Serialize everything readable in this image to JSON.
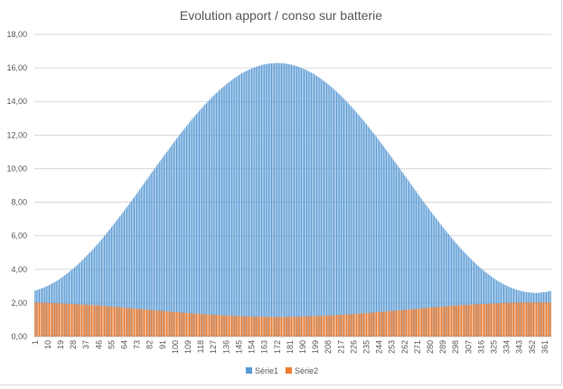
{
  "chart_data": {
    "type": "bar",
    "title": "Evolution apport / conso sur batterie",
    "xlabel": "",
    "ylabel": "",
    "ylim": [
      0,
      18
    ],
    "y_ticks": [
      0,
      2,
      4,
      6,
      8,
      10,
      12,
      14,
      16,
      18
    ],
    "y_tick_labels": [
      "0,00",
      "2,00",
      "4,00",
      "6,00",
      "8,00",
      "10,00",
      "12,00",
      "14,00",
      "16,00",
      "18,00"
    ],
    "x_range": [
      1,
      365
    ],
    "x_tick_labels": [
      "1",
      "10",
      "19",
      "28",
      "37",
      "46",
      "55",
      "64",
      "73",
      "82",
      "91",
      "100",
      "109",
      "118",
      "127",
      "136",
      "145",
      "154",
      "163",
      "172",
      "181",
      "190",
      "199",
      "208",
      "217",
      "226",
      "235",
      "244",
      "253",
      "262",
      "271",
      "280",
      "289",
      "298",
      "307",
      "316",
      "325",
      "334",
      "343",
      "352",
      "361"
    ],
    "grid": "horizontal",
    "legend_position": "bottom",
    "overlap": true,
    "colors": {
      "Série1": "#5B9BD5",
      "Série2": "#ED7D31",
      "grid": "#D9D9D9",
      "text": "#595959"
    },
    "series": [
      {
        "name": "Série1",
        "values": [
          2.74,
          2.76,
          2.79,
          2.82,
          2.85,
          2.88,
          2.91,
          2.95,
          2.99,
          3.03,
          3.07,
          3.11,
          3.16,
          3.21,
          3.25,
          3.3,
          3.35,
          3.41,
          3.47,
          3.53,
          3.59,
          3.65,
          3.72,
          3.78,
          3.85,
          3.91,
          3.98,
          4.05,
          4.13,
          4.2,
          4.28,
          4.35,
          4.43,
          4.52,
          4.6,
          4.69,
          4.77,
          4.86,
          4.95,
          5.03,
          5.12,
          5.21,
          5.31,
          5.4,
          5.5,
          5.59,
          5.69,
          5.79,
          5.89,
          6.0,
          6.1,
          6.2,
          6.31,
          6.41,
          6.52,
          6.62,
          6.73,
          6.84,
          6.95,
          7.06,
          7.17,
          7.28,
          7.39,
          7.5,
          7.62,
          7.73,
          7.84,
          7.96,
          8.07,
          8.19,
          8.3,
          8.42,
          8.54,
          8.66,
          8.77,
          8.89,
          9.01,
          9.13,
          9.25,
          9.36,
          9.48,
          9.6,
          9.72,
          9.83,
          9.95,
          10.06,
          10.18,
          10.3,
          10.42,
          10.53,
          10.65,
          10.77,
          10.88,
          11.0,
          11.11,
          11.23,
          11.34,
          11.45,
          11.56,
          11.68,
          11.79,
          11.9,
          12.01,
          12.12,
          12.22,
          12.33,
          12.44,
          12.54,
          12.65,
          12.75,
          12.86,
          12.96,
          13.06,
          13.16,
          13.25,
          13.35,
          13.45,
          13.54,
          13.63,
          13.73,
          13.82,
          13.91,
          14.0,
          14.09,
          14.17,
          14.26,
          14.35,
          14.43,
          14.51,
          14.58,
          14.66,
          14.74,
          14.81,
          14.88,
          14.95,
          15.02,
          15.09,
          15.15,
          15.22,
          15.28,
          15.35,
          15.41,
          15.46,
          15.52,
          15.57,
          15.63,
          15.68,
          15.72,
          15.77,
          15.81,
          15.86,
          15.9,
          15.93,
          15.97,
          16.0,
          16.04,
          16.07,
          16.1,
          16.12,
          16.15,
          16.17,
          16.2,
          16.21,
          16.23,
          16.24,
          16.26,
          16.27,
          16.28,
          16.28,
          16.29,
          16.29,
          16.3,
          16.29,
          16.29,
          16.28,
          16.28,
          16.27,
          16.26,
          16.24,
          16.23,
          16.21,
          16.2,
          16.17,
          16.15,
          16.12,
          16.1,
          16.07,
          16.04,
          16.0,
          15.97,
          15.93,
          15.9,
          15.86,
          15.81,
          15.77,
          15.72,
          15.68,
          15.63,
          15.57,
          15.52,
          15.46,
          15.41,
          15.35,
          15.28,
          15.22,
          15.15,
          15.09,
          15.02,
          14.95,
          14.88,
          14.81,
          14.74,
          14.66,
          14.58,
          14.51,
          14.43,
          14.35,
          14.26,
          14.17,
          14.09,
          14.0,
          13.91,
          13.82,
          13.73,
          13.63,
          13.54,
          13.45,
          13.35,
          13.25,
          13.16,
          13.06,
          12.96,
          12.86,
          12.75,
          12.65,
          12.54,
          12.44,
          12.33,
          12.22,
          12.12,
          12.01,
          11.9,
          11.79,
          11.68,
          11.56,
          11.45,
          11.34,
          11.23,
          11.11,
          11.0,
          10.88,
          10.77,
          10.65,
          10.53,
          10.42,
          10.3,
          10.18,
          10.06,
          9.95,
          9.83,
          9.72,
          9.6,
          9.48,
          9.36,
          9.25,
          9.13,
          9.01,
          8.89,
          8.77,
          8.66,
          8.54,
          8.42,
          8.3,
          8.19,
          8.07,
          7.96,
          7.84,
          7.73,
          7.62,
          7.5,
          7.39,
          7.28,
          7.17,
          7.06,
          6.95,
          6.84,
          6.73,
          6.62,
          6.52,
          6.41,
          6.31,
          6.2,
          6.1,
          6.0,
          5.89,
          5.79,
          5.69,
          5.59,
          5.5,
          5.4,
          5.31,
          5.21,
          5.12,
          5.03,
          4.95,
          4.86,
          4.77,
          4.69,
          4.6,
          4.52,
          4.43,
          4.35,
          4.28,
          4.2,
          4.13,
          4.05,
          3.98,
          3.91,
          3.85,
          3.78,
          3.72,
          3.65,
          3.59,
          3.53,
          3.47,
          3.41,
          3.35,
          3.3,
          3.25,
          3.21,
          3.16,
          3.11,
          3.07,
          3.03,
          2.99,
          2.95,
          2.91,
          2.88,
          2.85,
          2.82,
          2.79,
          2.76,
          2.74,
          2.72,
          2.7,
          2.68,
          2.66,
          2.65,
          2.64,
          2.63,
          2.62,
          2.61,
          2.6,
          2.6,
          2.6,
          2.6,
          2.61,
          2.62,
          2.63,
          2.64,
          2.65,
          2.66,
          2.68,
          2.7,
          2.72
        ]
      },
      {
        "name": "Série2",
        "values": [
          2.02,
          2.02,
          2.02,
          2.02,
          2.02,
          2.02,
          2.01,
          2.01,
          2.01,
          2.01,
          2.0,
          2.0,
          2.0,
          1.99,
          1.99,
          1.98,
          1.98,
          1.98,
          1.97,
          1.97,
          1.96,
          1.96,
          1.96,
          1.95,
          1.95,
          1.94,
          1.94,
          1.94,
          1.93,
          1.93,
          1.92,
          1.92,
          1.91,
          1.91,
          1.9,
          1.9,
          1.89,
          1.89,
          1.88,
          1.88,
          1.87,
          1.87,
          1.86,
          1.86,
          1.85,
          1.85,
          1.84,
          1.83,
          1.82,
          1.82,
          1.81,
          1.8,
          1.79,
          1.79,
          1.78,
          1.78,
          1.77,
          1.76,
          1.76,
          1.75,
          1.75,
          1.74,
          1.73,
          1.72,
          1.72,
          1.71,
          1.7,
          1.69,
          1.68,
          1.68,
          1.67,
          1.66,
          1.65,
          1.65,
          1.64,
          1.64,
          1.63,
          1.62,
          1.61,
          1.61,
          1.6,
          1.59,
          1.58,
          1.57,
          1.57,
          1.56,
          1.55,
          1.54,
          1.54,
          1.53,
          1.53,
          1.52,
          1.51,
          1.5,
          1.5,
          1.49,
          1.48,
          1.47,
          1.47,
          1.46,
          1.46,
          1.45,
          1.44,
          1.43,
          1.43,
          1.42,
          1.41,
          1.4,
          1.4,
          1.39,
          1.39,
          1.38,
          1.37,
          1.37,
          1.36,
          1.36,
          1.35,
          1.34,
          1.34,
          1.33,
          1.33,
          1.32,
          1.31,
          1.31,
          1.3,
          1.3,
          1.29,
          1.29,
          1.28,
          1.28,
          1.27,
          1.27,
          1.26,
          1.26,
          1.25,
          1.25,
          1.25,
          1.24,
          1.24,
          1.23,
          1.23,
          1.23,
          1.22,
          1.22,
          1.21,
          1.21,
          1.21,
          1.21,
          1.2,
          1.2,
          1.2,
          1.2,
          1.19,
          1.19,
          1.18,
          1.18,
          1.18,
          1.18,
          1.18,
          1.18,
          1.18,
          1.18,
          1.18,
          1.17,
          1.17,
          1.17,
          1.17,
          1.17,
          1.17,
          1.17,
          1.17,
          1.17,
          1.17,
          1.17,
          1.17,
          1.17,
          1.17,
          1.17,
          1.17,
          1.18,
          1.18,
          1.18,
          1.18,
          1.18,
          1.18,
          1.18,
          1.18,
          1.18,
          1.19,
          1.19,
          1.2,
          1.2,
          1.2,
          1.2,
          1.21,
          1.21,
          1.21,
          1.21,
          1.22,
          1.22,
          1.23,
          1.23,
          1.23,
          1.24,
          1.24,
          1.25,
          1.25,
          1.25,
          1.26,
          1.26,
          1.27,
          1.27,
          1.27,
          1.28,
          1.28,
          1.29,
          1.29,
          1.3,
          1.3,
          1.31,
          1.31,
          1.32,
          1.33,
          1.33,
          1.34,
          1.34,
          1.35,
          1.36,
          1.36,
          1.37,
          1.37,
          1.38,
          1.39,
          1.39,
          1.4,
          1.4,
          1.41,
          1.42,
          1.43,
          1.43,
          1.44,
          1.45,
          1.46,
          1.46,
          1.47,
          1.47,
          1.48,
          1.49,
          1.5,
          1.5,
          1.51,
          1.52,
          1.53,
          1.53,
          1.54,
          1.54,
          1.55,
          1.56,
          1.57,
          1.57,
          1.58,
          1.59,
          1.6,
          1.61,
          1.61,
          1.62,
          1.63,
          1.64,
          1.64,
          1.65,
          1.65,
          1.66,
          1.67,
          1.68,
          1.68,
          1.69,
          1.7,
          1.71,
          1.72,
          1.72,
          1.73,
          1.74,
          1.75,
          1.75,
          1.76,
          1.76,
          1.77,
          1.78,
          1.78,
          1.79,
          1.79,
          1.8,
          1.81,
          1.82,
          1.82,
          1.83,
          1.84,
          1.85,
          1.85,
          1.86,
          1.86,
          1.87,
          1.87,
          1.88,
          1.88,
          1.89,
          1.89,
          1.9,
          1.9,
          1.91,
          1.91,
          1.92,
          1.92,
          1.93,
          1.93,
          1.94,
          1.94,
          1.94,
          1.95,
          1.95,
          1.96,
          1.96,
          1.96,
          1.97,
          1.97,
          1.98,
          1.98,
          1.98,
          1.99,
          1.99,
          2.0,
          2.0,
          2.0,
          2.01,
          2.01,
          2.01,
          2.01,
          2.02,
          2.02,
          2.02,
          2.02,
          2.02,
          2.02,
          2.03,
          2.03,
          2.03,
          2.03,
          2.03,
          2.03,
          2.03,
          2.03,
          2.03,
          2.03,
          2.03,
          2.03,
          2.03,
          2.03,
          2.03,
          2.03,
          2.03,
          2.03,
          2.03,
          2.03,
          2.03,
          2.03
        ]
      }
    ]
  }
}
